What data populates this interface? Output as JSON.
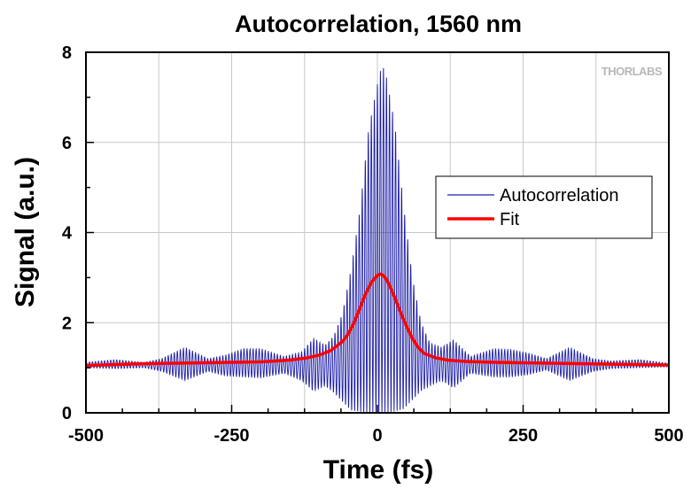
{
  "chart_data": {
    "type": "line",
    "title": "Autocorrelation, 1560 nm",
    "xlabel": "Time (fs)",
    "ylabel": "Signal (a.u.)",
    "xlim": [
      -500,
      500
    ],
    "ylim": [
      0,
      8
    ],
    "xticks": [
      -500,
      -250,
      0,
      250,
      500
    ],
    "yticks": [
      0,
      2,
      4,
      6,
      8
    ],
    "xtick_labels": [
      "-500",
      "-250",
      "0",
      "250",
      "500"
    ],
    "ytick_labels": [
      "0",
      "2",
      "4",
      "6",
      "8"
    ],
    "grid": true,
    "legend_position": "right-center",
    "series": [
      {
        "name": "Autocorrelation",
        "color": "#1f1fa8",
        "style": "interferometric-oscillation",
        "fringe_period_fs": 5.2,
        "baseline": 1.08,
        "envelope_x": [
          -500,
          -450,
          -400,
          -370,
          -330,
          -290,
          -260,
          -230,
          -200,
          -160,
          -130,
          -110,
          -90,
          -75,
          -60,
          -45,
          -30,
          -15,
          0,
          8,
          15,
          30,
          45,
          60,
          75,
          90,
          110,
          130,
          160,
          200,
          230,
          260,
          290,
          330,
          370,
          400,
          450,
          500
        ],
        "envelope_upper": [
          1.12,
          1.18,
          1.12,
          1.2,
          1.45,
          1.2,
          1.28,
          1.42,
          1.42,
          1.25,
          1.35,
          1.65,
          1.5,
          1.7,
          2.2,
          3.2,
          4.5,
          6.3,
          7.3,
          7.75,
          7.5,
          6.4,
          4.6,
          3.0,
          2.0,
          1.55,
          1.45,
          1.62,
          1.25,
          1.42,
          1.4,
          1.32,
          1.2,
          1.45,
          1.2,
          1.15,
          1.18,
          1.1
        ],
        "envelope_lower": [
          1.0,
          0.98,
          1.0,
          0.92,
          0.72,
          0.92,
          0.82,
          0.8,
          0.78,
          0.88,
          0.72,
          0.48,
          0.6,
          0.45,
          0.25,
          0.05,
          0.02,
          0.0,
          0.0,
          0.0,
          0.0,
          0.02,
          0.08,
          0.28,
          0.48,
          0.6,
          0.72,
          0.55,
          0.88,
          0.8,
          0.8,
          0.85,
          0.95,
          0.72,
          0.92,
          0.98,
          1.0,
          1.02
        ]
      },
      {
        "name": "Fit",
        "color": "#ff0000",
        "x": [
          -500,
          -400,
          -300,
          -200,
          -150,
          -120,
          -100,
          -80,
          -60,
          -50,
          -40,
          -30,
          -20,
          -10,
          0,
          5,
          10,
          15,
          20,
          30,
          40,
          50,
          60,
          70,
          80,
          100,
          120,
          150,
          200,
          300,
          400,
          500
        ],
        "y": [
          1.05,
          1.09,
          1.11,
          1.13,
          1.17,
          1.22,
          1.28,
          1.38,
          1.58,
          1.75,
          2.0,
          2.32,
          2.65,
          2.9,
          3.05,
          3.08,
          3.05,
          2.97,
          2.85,
          2.55,
          2.22,
          1.92,
          1.65,
          1.45,
          1.32,
          1.22,
          1.17,
          1.14,
          1.12,
          1.1,
          1.08,
          1.06
        ]
      }
    ],
    "annotations": [
      "THORLABS"
    ]
  }
}
